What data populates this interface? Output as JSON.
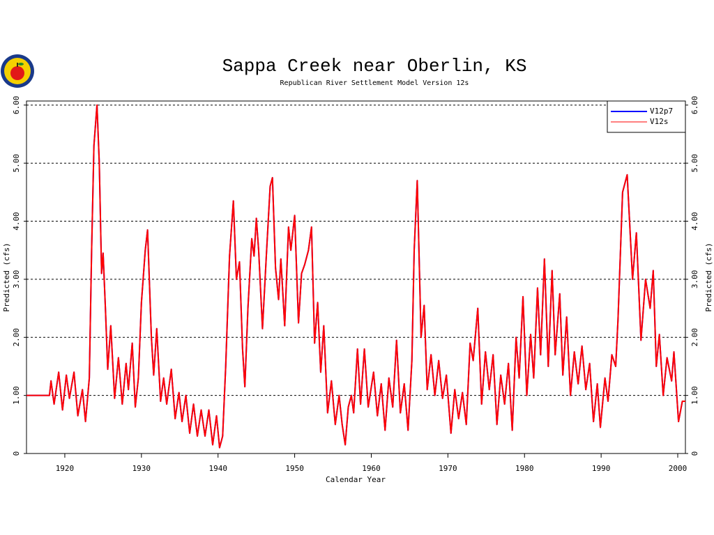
{
  "chart_data": {
    "type": "line",
    "title": "Sappa Creek near Oberlin, KS",
    "subtitle": "Republican River Settlement Model Version 12s",
    "x_label": "Calendar Year",
    "y_label": "Predicted (cfs)",
    "y2_label": "Predicted (cfs)",
    "xlim": [
      1915,
      2001
    ],
    "xticks": [
      1920,
      1930,
      1940,
      1950,
      1960,
      1970,
      1980,
      1990,
      2000
    ],
    "ylim": [
      0,
      6.07
    ],
    "yticks": [
      0,
      {
        "value": 1,
        "label": "1.00"
      },
      {
        "value": 2,
        "label": "2.00"
      },
      {
        "value": 3,
        "label": "3.00"
      },
      {
        "value": 4,
        "label": "4.00"
      },
      {
        "value": 5,
        "label": "5.00"
      },
      {
        "value": 6,
        "label": "6.00"
      }
    ],
    "grid": true,
    "legend": "upper right",
    "x": [
      1915,
      1918,
      1918.2,
      1918.6,
      1919.2,
      1919.7,
      1920.2,
      1920.6,
      1921.2,
      1921.7,
      1922.3,
      1922.7,
      1923.2,
      1923.5,
      1923.8,
      1924.2,
      1924.5,
      1924.8,
      1925,
      1925.3,
      1925.6,
      1926,
      1926.5,
      1927,
      1927.5,
      1928,
      1928.3,
      1928.8,
      1929.2,
      1929.6,
      1930,
      1930.5,
      1930.8,
      1931.3,
      1931.6,
      1932,
      1932.5,
      1932.9,
      1933.3,
      1933.9,
      1934.4,
      1934.9,
      1935.3,
      1935.8,
      1936.3,
      1936.8,
      1937.3,
      1937.8,
      1938.3,
      1938.8,
      1939.3,
      1939.8,
      1940.2,
      1940.6,
      1941,
      1941.5,
      1942,
      1942.4,
      1942.8,
      1943.2,
      1943.5,
      1943.9,
      1944.4,
      1944.7,
      1945,
      1945.3,
      1945.8,
      1946.3,
      1946.8,
      1947.1,
      1947.5,
      1947.9,
      1948.2,
      1948.7,
      1949.2,
      1949.5,
      1950,
      1950.5,
      1950.9,
      1951.3,
      1951.8,
      1952.2,
      1952.6,
      1953,
      1953.4,
      1953.8,
      1954.3,
      1954.8,
      1955.3,
      1955.8,
      1956.2,
      1956.6,
      1957,
      1957.4,
      1957.7,
      1958.2,
      1958.6,
      1959.1,
      1959.6,
      1960.3,
      1960.8,
      1961.3,
      1961.8,
      1962.3,
      1962.8,
      1963.3,
      1963.8,
      1964.3,
      1964.8,
      1965.3,
      1965.6,
      1966,
      1966.5,
      1966.9,
      1967.3,
      1967.8,
      1968.3,
      1968.8,
      1969.3,
      1969.8,
      1970.4,
      1970.9,
      1971.4,
      1971.9,
      1972.4,
      1972.9,
      1973.3,
      1973.9,
      1974.4,
      1974.9,
      1975.4,
      1975.9,
      1976.4,
      1976.9,
      1977.4,
      1977.9,
      1978.4,
      1978.9,
      1979.3,
      1979.8,
      1980.3,
      1980.8,
      1981.2,
      1981.7,
      1982.1,
      1982.6,
      1983.1,
      1983.6,
      1984,
      1984.6,
      1985,
      1985.5,
      1986,
      1986.5,
      1987,
      1987.5,
      1988,
      1988.5,
      1989,
      1989.5,
      1989.9,
      1990.5,
      1990.9,
      1991.4,
      1991.9,
      1992.2,
      1992.8,
      1993.4,
      1994.1,
      1994.6,
      1995.2,
      1995.8,
      1996.4,
      1996.8,
      1997.2,
      1997.6,
      1998.1,
      1998.6,
      1999.2,
      1999.5,
      2000.1,
      2000.6,
      2001
    ],
    "series": [
      {
        "name": "V12p7",
        "color": "#0000ff",
        "values": [
          1,
          1,
          1.25,
          0.85,
          1.4,
          0.75,
          1.35,
          0.95,
          1.4,
          0.65,
          1.1,
          0.55,
          1.3,
          3.5,
          5.3,
          6,
          5,
          3.1,
          3.45,
          2.5,
          1.45,
          2.2,
          0.95,
          1.65,
          0.85,
          1.55,
          1.1,
          1.9,
          0.8,
          1.3,
          2.6,
          3.5,
          3.85,
          2,
          1.35,
          2.15,
          0.9,
          1.3,
          0.85,
          1.45,
          0.6,
          1.05,
          0.55,
          1,
          0.35,
          0.85,
          0.3,
          0.75,
          0.3,
          0.75,
          0.15,
          0.65,
          0.1,
          0.3,
          1.5,
          3.4,
          4.35,
          3,
          3.3,
          1.8,
          1.15,
          2.5,
          3.7,
          3.4,
          4.05,
          3.5,
          2.15,
          3.4,
          4.6,
          4.75,
          3.2,
          2.65,
          3.35,
          2.2,
          3.9,
          3.5,
          4.1,
          2.25,
          3.1,
          3.25,
          3.5,
          3.9,
          1.9,
          2.6,
          1.4,
          2.2,
          0.7,
          1.25,
          0.5,
          1,
          0.5,
          0.15,
          0.8,
          1,
          0.7,
          1.8,
          0.85,
          1.8,
          0.8,
          1.4,
          0.65,
          1.2,
          0.4,
          1.3,
          0.8,
          1.95,
          0.7,
          1.2,
          0.4,
          1.6,
          3.5,
          4.7,
          2,
          2.55,
          1.1,
          1.7,
          1,
          1.6,
          0.95,
          1.35,
          0.35,
          1.1,
          0.6,
          1.05,
          0.5,
          1.9,
          1.6,
          2.5,
          0.85,
          1.75,
          1.1,
          1.7,
          0.5,
          1.35,
          0.85,
          1.55,
          0.4,
          2,
          1.3,
          2.7,
          1,
          2.05,
          1.3,
          2.85,
          1.7,
          3.35,
          1.5,
          3.15,
          1.7,
          2.75,
          1.35,
          2.35,
          1,
          1.75,
          1.2,
          1.85,
          1.1,
          1.55,
          0.55,
          1.2,
          0.45,
          1.3,
          0.9,
          1.7,
          1.5,
          2.3,
          4.5,
          4.8,
          3,
          3.8,
          1.95,
          3,
          2.5,
          3.15,
          1.5,
          2.05,
          1,
          1.65,
          1.25,
          1.75,
          0.55,
          0.9,
          0.9
        ]
      },
      {
        "name": "V12s",
        "color": "#ff0000",
        "values": [
          1,
          1,
          1.25,
          0.85,
          1.4,
          0.75,
          1.35,
          0.95,
          1.4,
          0.65,
          1.1,
          0.55,
          1.3,
          3.5,
          5.3,
          6,
          5,
          3.1,
          3.45,
          2.5,
          1.45,
          2.2,
          0.95,
          1.65,
          0.85,
          1.55,
          1.1,
          1.9,
          0.8,
          1.3,
          2.6,
          3.5,
          3.85,
          2,
          1.35,
          2.15,
          0.9,
          1.3,
          0.85,
          1.45,
          0.6,
          1.05,
          0.55,
          1,
          0.35,
          0.85,
          0.3,
          0.75,
          0.3,
          0.75,
          0.15,
          0.65,
          0.1,
          0.3,
          1.5,
          3.4,
          4.35,
          3,
          3.3,
          1.8,
          1.15,
          2.5,
          3.7,
          3.4,
          4.05,
          3.5,
          2.15,
          3.4,
          4.6,
          4.75,
          3.2,
          2.65,
          3.35,
          2.2,
          3.9,
          3.5,
          4.1,
          2.25,
          3.1,
          3.25,
          3.5,
          3.9,
          1.9,
          2.6,
          1.4,
          2.2,
          0.7,
          1.25,
          0.5,
          1,
          0.5,
          0.15,
          0.8,
          1,
          0.7,
          1.8,
          0.85,
          1.8,
          0.8,
          1.4,
          0.65,
          1.2,
          0.4,
          1.3,
          0.8,
          1.95,
          0.7,
          1.2,
          0.4,
          1.6,
          3.5,
          4.7,
          2,
          2.55,
          1.1,
          1.7,
          1,
          1.6,
          0.95,
          1.35,
          0.35,
          1.1,
          0.6,
          1.05,
          0.5,
          1.9,
          1.6,
          2.5,
          0.85,
          1.75,
          1.1,
          1.7,
          0.5,
          1.35,
          0.85,
          1.55,
          0.4,
          2,
          1.3,
          2.7,
          1,
          2.05,
          1.3,
          2.85,
          1.7,
          3.35,
          1.5,
          3.15,
          1.7,
          2.75,
          1.35,
          2.35,
          1,
          1.75,
          1.2,
          1.85,
          1.1,
          1.55,
          0.55,
          1.2,
          0.45,
          1.3,
          0.9,
          1.7,
          1.5,
          2.3,
          4.5,
          4.8,
          3,
          3.8,
          1.95,
          3,
          2.5,
          3.15,
          1.5,
          2.05,
          1,
          1.65,
          1.25,
          1.75,
          0.55,
          0.9,
          0.9
        ]
      }
    ]
  }
}
